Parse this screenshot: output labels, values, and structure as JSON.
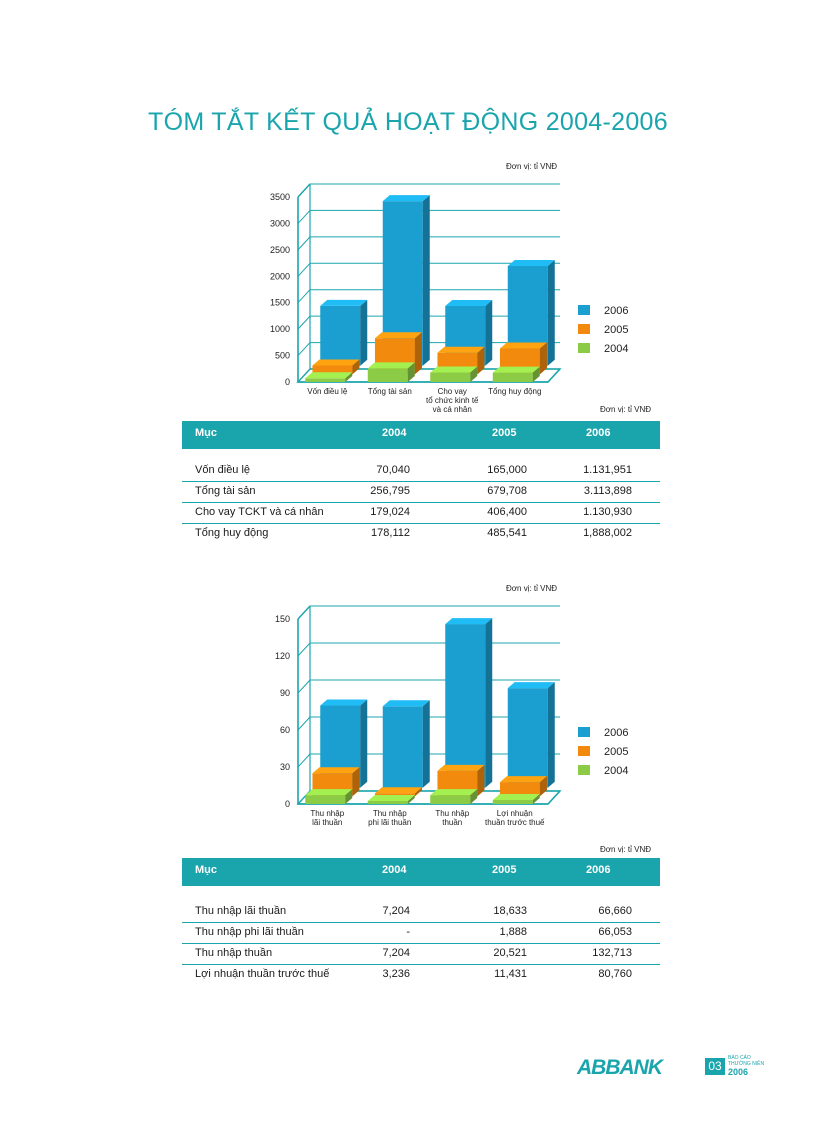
{
  "page": {
    "title": "TÓM TẮT KẾT QUẢ HOẠT ĐỘNG 2004-2006",
    "unit": "Đơn vị: tỉ VNĐ"
  },
  "colors": {
    "c2006": "#1b9fd0",
    "c2005": "#f28a0e",
    "c2004": "#8ccb45",
    "accent": "#1aa5ad"
  },
  "chart_data": [
    {
      "type": "bar",
      "categories": [
        "Vốn điều lệ",
        "Tổng tài sản",
        "Cho vay tổ chức kinh tế và cá nhân",
        "Tổng huy động"
      ],
      "category_lines": [
        [
          "Vốn điều lệ"
        ],
        [
          "Tổng tài sản"
        ],
        [
          "Cho vay",
          "tổ chức kinh tế",
          "và cá nhân"
        ],
        [
          "Tổng huy động"
        ]
      ],
      "series": [
        {
          "name": "2006",
          "values": [
            1131.951,
            3113.898,
            1130.93,
            1888.002
          ]
        },
        {
          "name": "2005",
          "values": [
            165.0,
            679.708,
            406.4,
            485.541
          ]
        },
        {
          "name": "2004",
          "values": [
            70.04,
            256.795,
            179.024,
            178.112
          ]
        }
      ],
      "yticks": [
        0,
        500,
        1000,
        1500,
        2000,
        2500,
        3000,
        3500
      ],
      "ylim": [
        0,
        3500
      ],
      "legend": "right",
      "grid": true
    },
    {
      "type": "bar",
      "categories": [
        "Thu nhập lãi thuần",
        "Thu nhập phi lãi thuần",
        "Thu nhập thuần",
        "Lợi nhuận thuần trước thuế"
      ],
      "category_lines": [
        [
          "Thu nhập",
          "lãi thuần"
        ],
        [
          "Thu nhập",
          "phi lãi thuần"
        ],
        [
          "Thu nhập",
          "thuần"
        ],
        [
          "Lợi nhuận",
          "thuần trước thuế"
        ]
      ],
      "series": [
        {
          "name": "2006",
          "values": [
            66.66,
            66.053,
            132.713,
            80.76
          ]
        },
        {
          "name": "2005",
          "values": [
            18.633,
            1.888,
            20.521,
            11.431
          ]
        },
        {
          "name": "2004",
          "values": [
            7.204,
            0,
            7.204,
            3.236
          ]
        }
      ],
      "yticks": [
        0,
        30,
        60,
        90,
        120,
        150
      ],
      "ylim": [
        0,
        150
      ],
      "legend": "right",
      "grid": true
    }
  ],
  "table1": {
    "headers": [
      "Mục",
      "2004",
      "2005",
      "2006"
    ],
    "rows": [
      [
        "Vốn điều lệ",
        "70,040",
        "165,000",
        "1.131,951"
      ],
      [
        "Tổng tài sản",
        "256,795",
        "679,708",
        "3.113,898"
      ],
      [
        "Cho vay TCKT và cá nhân",
        "179,024",
        "406,400",
        "1.130,930"
      ],
      [
        "Tổng huy động",
        "178,112",
        "485,541",
        "1,888,002"
      ]
    ]
  },
  "table2": {
    "headers": [
      "Mục",
      "2004",
      "2005",
      "2006"
    ],
    "rows": [
      [
        "Thu nhập lãi thuần",
        "7,204",
        "18,633",
        "66,660"
      ],
      [
        "Thu nhập phi lãi thuần",
        "-",
        "1,888",
        "66,053"
      ],
      [
        "Thu nhập thuần",
        "7,204",
        "20,521",
        "132,713"
      ],
      [
        "Lợi nhuận thuần trước thuế",
        "3,236",
        "11,431",
        "80,760"
      ]
    ]
  },
  "footer": {
    "brand": "ABBANK",
    "page_number": "03",
    "report_label": "BÁO CÁO THƯỜNG NIÊN",
    "report_year": "2006"
  }
}
